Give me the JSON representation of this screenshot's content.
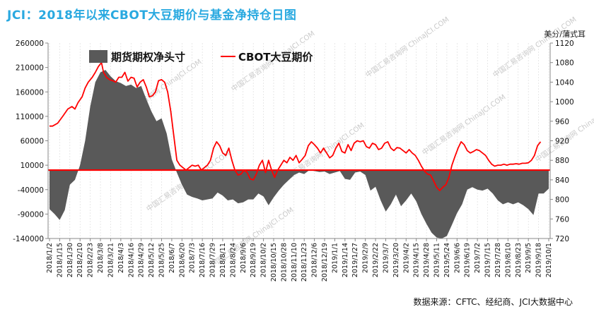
{
  "header": {
    "title": "JCI：2018年以来CBOT大豆期价与基金净持仓日图",
    "unit_right": "美分/蒲式耳"
  },
  "footer": {
    "source": "数据来源：CFTC、经纪商、JCI大数据中心"
  },
  "watermark": {
    "text": "中国汇易咨询网 ChinaJCI.COM"
  },
  "colors": {
    "area": "#595959",
    "line": "#ff0000",
    "title": "#29a9e0"
  },
  "chart_data": {
    "type": "area+line",
    "title": "JCI：2018年以来CBOT大豆期价与基金净持仓日图",
    "legend": [
      "期货期权净头寸",
      "CBOT大豆期价"
    ],
    "legend_position": "top-left",
    "y_left": {
      "min": -140000,
      "max": 260000,
      "step": 50000,
      "ticks": [
        "260000",
        "210000",
        "160000",
        "110000",
        "60000",
        "10000",
        "-40000",
        "-90000",
        "-140000"
      ]
    },
    "y_right": {
      "min": 720,
      "max": 1120,
      "step": 40,
      "label": "美分/蒲式耳",
      "ticks": [
        "1120",
        "1080",
        "1040",
        "1000",
        "960",
        "920",
        "880",
        "840",
        "800",
        "760",
        "720"
      ]
    },
    "x_labels": [
      "2018/1/2",
      "2018/1/15",
      "2018/1/30",
      "2018/2/10",
      "2018/2/23",
      "2018/3/8",
      "2018/3/21",
      "2018/4/3",
      "2018/4/16",
      "2018/4/29",
      "2018/5/12",
      "2018/5/25",
      "2018/6/7",
      "2018/6/20",
      "2018/7/3",
      "2018/7/16",
      "2018/7/29",
      "2018/8/11",
      "2018/8/24",
      "2018/9/6",
      "2018/9/19",
      "2018/10/2",
      "2018/10/15",
      "2018/10/28",
      "2018/11/10",
      "2018/11/23",
      "2018/12/6",
      "2018/12/19",
      "2019/1/1",
      "2019/1/14",
      "2019/1/27",
      "2019/2/9",
      "2019/2/22",
      "2019/3/7",
      "2019/3/20",
      "2019/4/2",
      "2019/4/15",
      "2019/4/28",
      "2019/5/11",
      "2019/5/24",
      "2019/6/6",
      "2019/6/19",
      "2019/7/2",
      "2019/7/15",
      "2019/7/28",
      "2019/8/10",
      "2019/8/23",
      "2019/9/5",
      "2019/9/18",
      "2019/10/1"
    ],
    "series": [
      {
        "name": "期货期权净头寸",
        "axis": "left",
        "type": "area",
        "values": [
          [
            0,
            -80000
          ],
          [
            0.5,
            -90000
          ],
          [
            1,
            -102000
          ],
          [
            1.5,
            -82000
          ],
          [
            2,
            -30000
          ],
          [
            2.5,
            -20000
          ],
          [
            3,
            10000
          ],
          [
            3.5,
            60000
          ],
          [
            4,
            130000
          ],
          [
            4.5,
            180000
          ],
          [
            5,
            200000
          ],
          [
            5.5,
            205000
          ],
          [
            6,
            192000
          ],
          [
            6.5,
            182000
          ],
          [
            7,
            178000
          ],
          [
            7.5,
            172000
          ],
          [
            8,
            175000
          ],
          [
            8.5,
            168000
          ],
          [
            9,
            172000
          ],
          [
            9.5,
            145000
          ],
          [
            10,
            120000
          ],
          [
            10.5,
            100000
          ],
          [
            11,
            106000
          ],
          [
            11.5,
            75000
          ],
          [
            12,
            22000
          ],
          [
            12.5,
            -5000
          ],
          [
            13,
            -30000
          ],
          [
            13.5,
            -50000
          ],
          [
            14,
            -55000
          ],
          [
            14.5,
            -58000
          ],
          [
            15,
            -62000
          ],
          [
            15.5,
            -60000
          ],
          [
            16,
            -58000
          ],
          [
            16.5,
            -46000
          ],
          [
            17,
            -52000
          ],
          [
            17.5,
            -62000
          ],
          [
            18,
            -60000
          ],
          [
            18.5,
            -68000
          ],
          [
            19,
            -66000
          ],
          [
            19.5,
            -60000
          ],
          [
            20,
            -60000
          ],
          [
            20.5,
            -48000
          ],
          [
            21,
            -54000
          ],
          [
            21.5,
            -72000
          ],
          [
            22,
            -56000
          ],
          [
            22.5,
            -42000
          ],
          [
            23,
            -30000
          ],
          [
            23.5,
            -20000
          ],
          [
            24,
            -10000
          ],
          [
            24.5,
            -5000
          ],
          [
            25,
            -8000
          ],
          [
            25.5,
            0
          ],
          [
            26,
            -2000
          ],
          [
            26.5,
            -4000
          ],
          [
            27,
            -3000
          ],
          [
            27.5,
            -8000
          ],
          [
            28,
            -5000
          ],
          [
            28.5,
            -2000
          ],
          [
            29,
            -18000
          ],
          [
            29.5,
            -20000
          ],
          [
            30,
            -5000
          ],
          [
            30.5,
            -3000
          ],
          [
            31,
            -10000
          ],
          [
            31.5,
            -42000
          ],
          [
            32,
            -34000
          ],
          [
            32.5,
            -62000
          ],
          [
            33,
            -85000
          ],
          [
            33.5,
            -70000
          ],
          [
            34,
            -50000
          ],
          [
            34.5,
            -74000
          ],
          [
            35,
            -62000
          ],
          [
            35.5,
            -48000
          ],
          [
            36,
            -64000
          ],
          [
            36.5,
            -90000
          ],
          [
            37,
            -110000
          ],
          [
            37.5,
            -128000
          ],
          [
            38,
            -138000
          ],
          [
            38.5,
            -140000
          ],
          [
            39,
            -135000
          ],
          [
            39.5,
            -112000
          ],
          [
            40,
            -88000
          ],
          [
            40.5,
            -70000
          ],
          [
            41,
            -40000
          ],
          [
            41.5,
            -35000
          ],
          [
            42,
            -40000
          ],
          [
            42.5,
            -42000
          ],
          [
            43,
            -38000
          ],
          [
            43.5,
            -48000
          ],
          [
            44,
            -62000
          ],
          [
            44.5,
            -70000
          ],
          [
            45,
            -66000
          ],
          [
            45.5,
            -70000
          ],
          [
            46,
            -66000
          ],
          [
            46.5,
            -72000
          ],
          [
            47,
            -80000
          ],
          [
            47.5,
            -92000
          ],
          [
            48,
            -48000
          ],
          [
            48.5,
            -48000
          ],
          [
            49,
            -38000
          ]
        ]
      },
      {
        "name": "CBOT大豆期价",
        "axis": "right",
        "type": "line",
        "values": [
          [
            0,
            950
          ],
          [
            0.3,
            950
          ],
          [
            0.8,
            956
          ],
          [
            1.3,
            970
          ],
          [
            1.8,
            985
          ],
          [
            2.2,
            990
          ],
          [
            2.5,
            985
          ],
          [
            2.8,
            998
          ],
          [
            3.2,
            1010
          ],
          [
            3.5,
            1028
          ],
          [
            3.8,
            1040
          ],
          [
            4.2,
            1050
          ],
          [
            4.5,
            1060
          ],
          [
            4.8,
            1072
          ],
          [
            5.1,
            1080
          ],
          [
            5.3,
            1060
          ],
          [
            5.6,
            1050
          ],
          [
            5.9,
            1045
          ],
          [
            6.2,
            1043
          ],
          [
            6.5,
            1040
          ],
          [
            6.8,
            1050
          ],
          [
            7.1,
            1050
          ],
          [
            7.4,
            1060
          ],
          [
            7.7,
            1042
          ],
          [
            8,
            1050
          ],
          [
            8.3,
            1048
          ],
          [
            8.6,
            1030
          ],
          [
            8.9,
            1040
          ],
          [
            9.2,
            1045
          ],
          [
            9.5,
            1030
          ],
          [
            9.8,
            1010
          ],
          [
            10.1,
            1012
          ],
          [
            10.4,
            1020
          ],
          [
            10.7,
            1043
          ],
          [
            11,
            1045
          ],
          [
            11.3,
            1040
          ],
          [
            11.6,
            1020
          ],
          [
            11.9,
            980
          ],
          [
            12.2,
            930
          ],
          [
            12.5,
            880
          ],
          [
            12.8,
            870
          ],
          [
            13.1,
            865
          ],
          [
            13.4,
            860
          ],
          [
            13.7,
            865
          ],
          [
            14,
            870
          ],
          [
            14.3,
            868
          ],
          [
            14.6,
            870
          ],
          [
            14.9,
            860
          ],
          [
            15.2,
            865
          ],
          [
            15.5,
            870
          ],
          [
            15.8,
            880
          ],
          [
            16.1,
            905
          ],
          [
            16.4,
            918
          ],
          [
            16.7,
            910
          ],
          [
            17,
            895
          ],
          [
            17.3,
            890
          ],
          [
            17.6,
            905
          ],
          [
            17.9,
            880
          ],
          [
            18.2,
            860
          ],
          [
            18.5,
            850
          ],
          [
            18.8,
            852
          ],
          [
            19.1,
            860
          ],
          [
            19.4,
            855
          ],
          [
            19.7,
            842
          ],
          [
            20,
            840
          ],
          [
            20.3,
            852
          ],
          [
            20.6,
            870
          ],
          [
            20.9,
            880
          ],
          [
            21.2,
            855
          ],
          [
            21.5,
            880
          ],
          [
            21.8,
            860
          ],
          [
            22.1,
            845
          ],
          [
            22.4,
            860
          ],
          [
            22.7,
            870
          ],
          [
            23,
            880
          ],
          [
            23.3,
            875
          ],
          [
            23.6,
            886
          ],
          [
            23.9,
            880
          ],
          [
            24.2,
            890
          ],
          [
            24.5,
            875
          ],
          [
            24.8,
            882
          ],
          [
            25.1,
            890
          ],
          [
            25.4,
            910
          ],
          [
            25.7,
            918
          ],
          [
            26,
            912
          ],
          [
            26.3,
            905
          ],
          [
            26.6,
            895
          ],
          [
            26.9,
            905
          ],
          [
            27.2,
            895
          ],
          [
            27.5,
            885
          ],
          [
            27.8,
            890
          ],
          [
            28.1,
            905
          ],
          [
            28.4,
            915
          ],
          [
            28.7,
            898
          ],
          [
            29,
            895
          ],
          [
            29.3,
            912
          ],
          [
            29.6,
            900
          ],
          [
            29.9,
            915
          ],
          [
            30.2,
            920
          ],
          [
            30.5,
            918
          ],
          [
            30.8,
            920
          ],
          [
            31.1,
            908
          ],
          [
            31.4,
            905
          ],
          [
            31.7,
            915
          ],
          [
            32,
            912
          ],
          [
            32.3,
            902
          ],
          [
            32.6,
            905
          ],
          [
            32.9,
            915
          ],
          [
            33.2,
            918
          ],
          [
            33.5,
            905
          ],
          [
            33.8,
            900
          ],
          [
            34.1,
            906
          ],
          [
            34.4,
            905
          ],
          [
            34.7,
            900
          ],
          [
            35,
            895
          ],
          [
            35.3,
            902
          ],
          [
            35.6,
            895
          ],
          [
            35.9,
            890
          ],
          [
            36.2,
            880
          ],
          [
            36.5,
            868
          ],
          [
            36.8,
            858
          ],
          [
            37.1,
            852
          ],
          [
            37.4,
            850
          ],
          [
            37.7,
            838
          ],
          [
            38,
            825
          ],
          [
            38.3,
            818
          ],
          [
            38.6,
            825
          ],
          [
            38.9,
            830
          ],
          [
            39.2,
            845
          ],
          [
            39.5,
            870
          ],
          [
            39.8,
            888
          ],
          [
            40.1,
            905
          ],
          [
            40.4,
            918
          ],
          [
            40.7,
            912
          ],
          [
            41,
            900
          ],
          [
            41.3,
            895
          ],
          [
            41.6,
            898
          ],
          [
            41.9,
            902
          ],
          [
            42.2,
            900
          ],
          [
            42.5,
            895
          ],
          [
            42.8,
            890
          ],
          [
            43.1,
            880
          ],
          [
            43.4,
            872
          ],
          [
            43.7,
            868
          ],
          [
            44,
            870
          ],
          [
            44.3,
            870
          ],
          [
            44.6,
            872
          ],
          [
            44.9,
            870
          ],
          [
            45.2,
            872
          ],
          [
            45.5,
            872
          ],
          [
            45.8,
            873
          ],
          [
            46.1,
            872
          ],
          [
            46.4,
            874
          ],
          [
            46.7,
            874
          ],
          [
            47,
            875
          ],
          [
            47.3,
            880
          ],
          [
            47.6,
            890
          ],
          [
            47.9,
            910
          ],
          [
            48.2,
            918
          ]
        ]
      }
    ]
  }
}
